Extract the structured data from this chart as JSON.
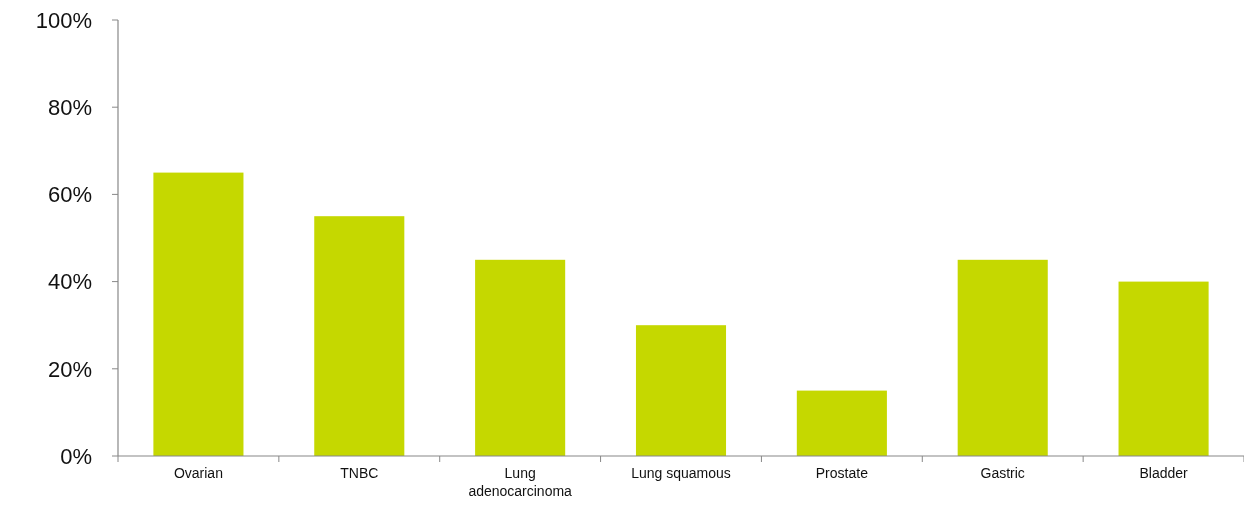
{
  "chart_data": {
    "type": "bar",
    "categories": [
      "Ovarian",
      "TNBC",
      "Lung adenocarcinoma",
      "Lung squamous",
      "Prostate",
      "Gastric",
      "Bladder"
    ],
    "values": [
      65,
      55,
      45,
      30,
      15,
      45,
      40
    ],
    "color": "#c5d800",
    "ylim": [
      0,
      100
    ],
    "yticks": [
      {
        "value": 0,
        "label": "0%"
      },
      {
        "value": 20,
        "label": "20%"
      },
      {
        "value": 40,
        "label": "40%"
      },
      {
        "value": 60,
        "label": "60%"
      },
      {
        "value": 80,
        "label": "80%"
      },
      {
        "value": 100,
        "label": "100%"
      }
    ],
    "grid": false
  }
}
